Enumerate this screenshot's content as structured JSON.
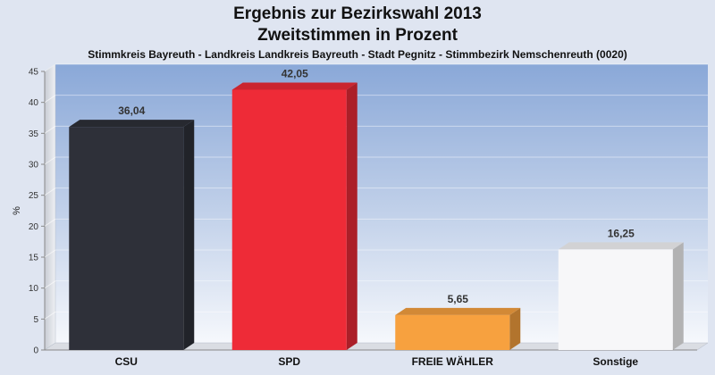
{
  "header": {
    "title_line1": "Ergebnis zur Bezirkswahl 2013",
    "title_line2": "Zweitstimmen in Prozent",
    "subtitle": "Stimmkreis Bayreuth - Landkreis Landkreis Bayreuth - Stadt Pegnitz - Stimmbezirk Nemschenreuth (0020)"
  },
  "chart_data": {
    "type": "bar",
    "title": "Ergebnis zur Bezirkswahl 2013",
    "subtitle": "Zweitstimmen in Prozent",
    "xlabel": "",
    "ylabel": "%",
    "ylim": [
      0,
      45
    ],
    "yticks": [
      0,
      5,
      10,
      15,
      20,
      25,
      30,
      35,
      40,
      45
    ],
    "grid": true,
    "categories": [
      "CSU",
      "SPD",
      "FREIE WÄHLER",
      "Sonstige"
    ],
    "values": [
      36.04,
      42.05,
      5.65,
      16.25
    ],
    "value_labels": [
      "36,04",
      "42,05",
      "5,65",
      "16,25"
    ],
    "colors": [
      "#2e3039",
      "#ee2b37",
      "#f7a13f",
      "#f7f7f9"
    ]
  }
}
